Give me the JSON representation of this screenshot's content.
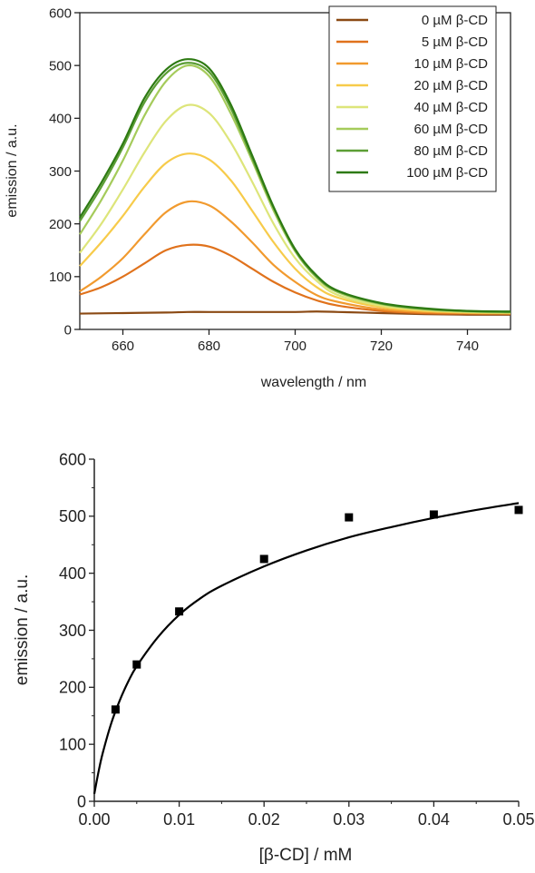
{
  "chart_data": [
    {
      "type": "line",
      "title": "",
      "xlabel": "wavelength / nm",
      "ylabel": "emission / a.u.",
      "xlim": [
        650,
        750
      ],
      "ylim": [
        0,
        600
      ],
      "xticks": [
        "660",
        "680",
        "700",
        "720",
        "740"
      ],
      "yticks": [
        "0",
        "100",
        "200",
        "300",
        "400",
        "500",
        "600"
      ],
      "legend_position": "top-right",
      "grid": false,
      "series": [
        {
          "name": "0 µM β-CD",
          "color": "#8B4A14",
          "x": [
            650,
            660,
            670,
            675,
            680,
            690,
            700,
            705,
            710,
            720,
            730,
            740,
            750
          ],
          "values": [
            30,
            31,
            32,
            33,
            33,
            33,
            33,
            34,
            33,
            31,
            29,
            28,
            28
          ]
        },
        {
          "name": "5 µM β-CD",
          "color": "#E0721C",
          "x": [
            650,
            655,
            660,
            665,
            670,
            675,
            680,
            685,
            690,
            695,
            700,
            705,
            710,
            720,
            730,
            740,
            750
          ],
          "values": [
            66,
            80,
            100,
            125,
            150,
            160,
            157,
            140,
            115,
            90,
            70,
            55,
            45,
            35,
            31,
            30,
            30
          ]
        },
        {
          "name": "10 µM β-CD",
          "color": "#F19A2E",
          "x": [
            650,
            655,
            660,
            665,
            670,
            675,
            680,
            685,
            690,
            695,
            700,
            705,
            710,
            720,
            730,
            740,
            750
          ],
          "values": [
            72,
            100,
            135,
            180,
            222,
            242,
            235,
            205,
            165,
            122,
            90,
            65,
            52,
            38,
            33,
            31,
            30
          ]
        },
        {
          "name": "20 µM β-CD",
          "color": "#F7CB4A",
          "x": [
            650,
            655,
            660,
            665,
            670,
            675,
            680,
            685,
            690,
            695,
            700,
            705,
            710,
            720,
            730,
            740,
            750
          ],
          "values": [
            120,
            165,
            215,
            270,
            315,
            333,
            322,
            283,
            225,
            165,
            115,
            80,
            60,
            42,
            35,
            32,
            31
          ]
        },
        {
          "name": "40 µM β-CD",
          "color": "#DDE57A",
          "x": [
            650,
            655,
            660,
            665,
            670,
            675,
            680,
            685,
            690,
            695,
            700,
            705,
            710,
            720,
            730,
            740,
            750
          ],
          "values": [
            145,
            200,
            265,
            335,
            395,
            425,
            410,
            355,
            280,
            200,
            135,
            92,
            65,
            45,
            37,
            33,
            32
          ]
        },
        {
          "name": "60 µM β-CD",
          "color": "#A5CB5B",
          "x": [
            650,
            655,
            660,
            665,
            670,
            675,
            680,
            685,
            690,
            695,
            700,
            705,
            710,
            720,
            730,
            740,
            750
          ],
          "values": [
            180,
            245,
            320,
            405,
            470,
            500,
            480,
            410,
            320,
            225,
            148,
            98,
            70,
            48,
            38,
            34,
            32
          ]
        },
        {
          "name": "80 µM β-CD",
          "color": "#5C9E35",
          "x": [
            650,
            655,
            660,
            665,
            670,
            675,
            680,
            685,
            690,
            695,
            700,
            705,
            710,
            720,
            730,
            740,
            750
          ],
          "values": [
            205,
            270,
            345,
            430,
            485,
            505,
            488,
            420,
            325,
            230,
            150,
            100,
            72,
            49,
            39,
            35,
            33
          ]
        },
        {
          "name": "100 µM β-CD",
          "color": "#2D7A12",
          "x": [
            650,
            655,
            660,
            665,
            670,
            675,
            680,
            685,
            690,
            695,
            700,
            705,
            710,
            720,
            730,
            740,
            750
          ],
          "values": [
            212,
            278,
            352,
            438,
            492,
            512,
            495,
            427,
            330,
            232,
            152,
            102,
            73,
            50,
            40,
            35,
            34
          ]
        }
      ]
    },
    {
      "type": "scatter",
      "title": "",
      "xlabel": "[β-CD] / mM",
      "ylabel": "emission / a.u.",
      "xlim": [
        0.0,
        0.05
      ],
      "ylim": [
        0,
        600
      ],
      "xticks": [
        "0.00",
        "0.01",
        "0.02",
        "0.03",
        "0.04",
        "0.05"
      ],
      "yticks": [
        "0",
        "100",
        "200",
        "300",
        "400",
        "500",
        "600"
      ],
      "grid": false,
      "points": {
        "x": [
          0.0025,
          0.005,
          0.01,
          0.02,
          0.03,
          0.04,
          0.05
        ],
        "values": [
          161,
          240,
          333,
          425,
          498,
          503,
          511
        ]
      },
      "fit": {
        "x": [
          0.0,
          0.0005,
          0.001,
          0.002,
          0.003,
          0.004,
          0.005,
          0.0075,
          0.01,
          0.0125,
          0.015,
          0.02,
          0.025,
          0.03,
          0.035,
          0.04,
          0.045,
          0.05
        ],
        "values": [
          13,
          52,
          85,
          137,
          177,
          210,
          237,
          288,
          327,
          356,
          378,
          412,
          440,
          463,
          481,
          497,
          511,
          523
        ]
      }
    }
  ]
}
